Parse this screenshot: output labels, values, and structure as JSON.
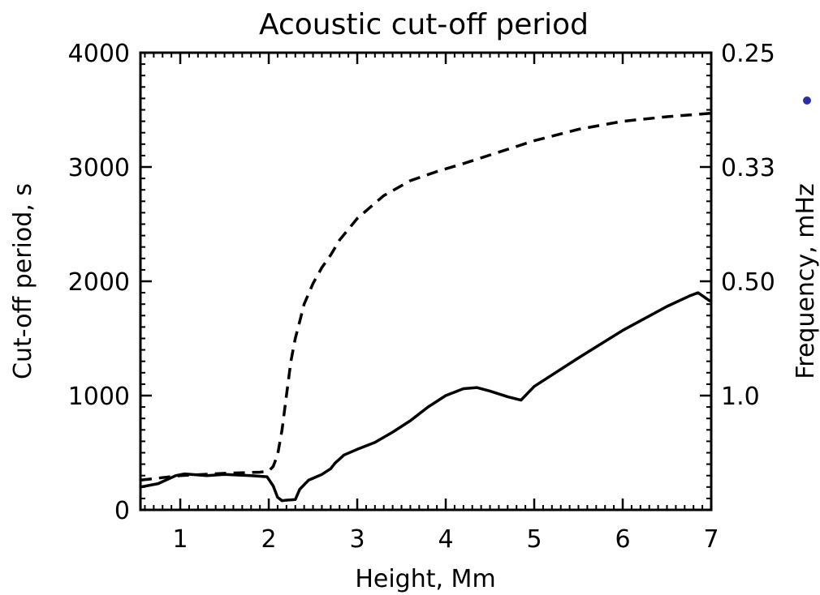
{
  "chart_data": {
    "type": "line",
    "title": "Acoustic cut-off period",
    "xlabel": "Height, Mm",
    "ylabel": "Cut-off period, s",
    "ylabel_right": "Frequency, mHz",
    "xlim": [
      0.55,
      7.0
    ],
    "ylim": [
      0,
      4000
    ],
    "xticks": [
      "1",
      "2",
      "3",
      "4",
      "5",
      "6",
      "7"
    ],
    "yticks": [
      "0",
      "1000",
      "2000",
      "3000",
      "4000"
    ],
    "right_ticks": [
      "0.25",
      "0.33",
      "0.50",
      "1.0"
    ],
    "right_tick_periods": [
      4000,
      3000,
      2000,
      1000
    ],
    "grid": false,
    "legend": "none",
    "series": [
      {
        "style": "solid",
        "x": [
          0.55,
          0.75,
          0.95,
          1.05,
          1.3,
          1.5,
          1.8,
          1.98,
          2.05,
          2.1,
          2.15,
          2.2,
          2.3,
          2.35,
          2.45,
          2.6,
          2.7,
          2.75,
          2.85,
          3.0,
          3.2,
          3.4,
          3.6,
          3.8,
          4.0,
          4.2,
          4.35,
          4.5,
          4.7,
          4.85,
          5.0,
          5.5,
          6.0,
          6.5,
          6.75,
          6.85,
          7.0
        ],
        "y": [
          200,
          230,
          300,
          315,
          300,
          310,
          300,
          290,
          210,
          110,
          80,
          85,
          90,
          180,
          260,
          310,
          360,
          410,
          480,
          530,
          590,
          680,
          780,
          900,
          1000,
          1060,
          1070,
          1040,
          990,
          960,
          1080,
          1330,
          1570,
          1780,
          1870,
          1900,
          1820
        ]
      },
      {
        "style": "dashed",
        "x": [
          0.55,
          1.0,
          1.5,
          1.9,
          2.0,
          2.05,
          2.1,
          2.15,
          2.2,
          2.25,
          2.3,
          2.35,
          2.4,
          2.5,
          2.6,
          2.7,
          2.8,
          3.0,
          3.3,
          3.6,
          3.9,
          4.2,
          4.6,
          5.0,
          5.5,
          6.0,
          6.5,
          7.0
        ],
        "y": [
          260,
          300,
          320,
          330,
          340,
          380,
          480,
          700,
          1000,
          1300,
          1500,
          1650,
          1800,
          1980,
          2120,
          2230,
          2360,
          2550,
          2750,
          2880,
          2960,
          3030,
          3130,
          3230,
          3330,
          3400,
          3440,
          3470
        ]
      }
    ],
    "annotations": [
      {
        "kind": "marker",
        "shape": "dot",
        "color": "#2a2fa8"
      }
    ]
  }
}
